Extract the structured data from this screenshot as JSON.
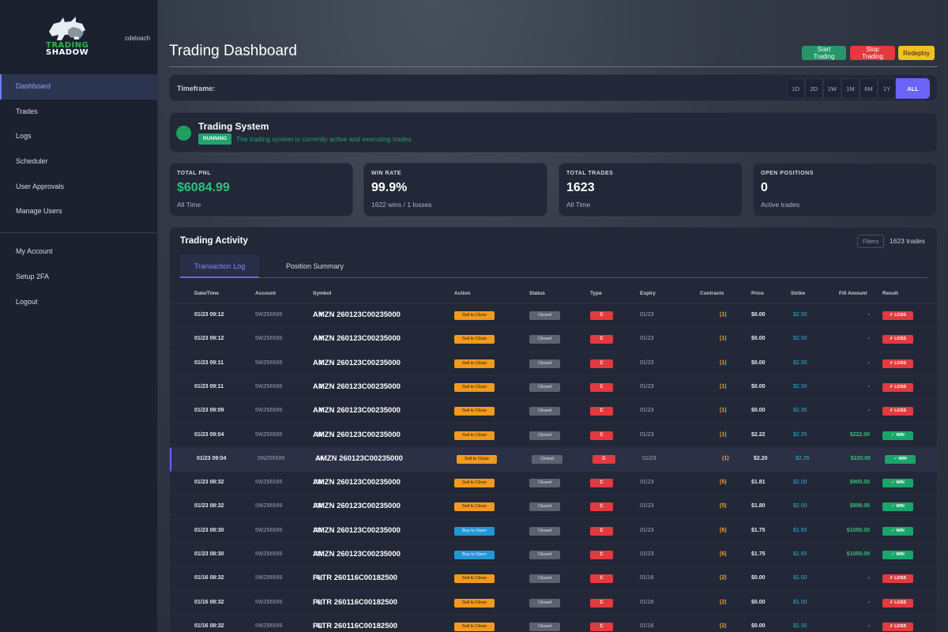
{
  "app": {
    "logo_line1": "TRADING",
    "logo_line2": "SHADOW",
    "username": "cdeloach"
  },
  "sidebar": {
    "items": [
      {
        "label": "Dashboard",
        "active": true
      },
      {
        "label": "Trades"
      },
      {
        "label": "Logs"
      },
      {
        "label": "Scheduler"
      },
      {
        "label": "User Approvals"
      },
      {
        "label": "Manage Users"
      }
    ],
    "account_items": [
      {
        "label": "My Account"
      },
      {
        "label": "Setup 2FA"
      },
      {
        "label": "Logout"
      }
    ]
  },
  "header": {
    "title": "Trading Dashboard",
    "start_label": "Start Trading",
    "stop_label": "Stop Trading",
    "redeploy_label": "Redeploy"
  },
  "timeframe": {
    "label": "Timeframe:",
    "options": [
      "1D",
      "2D",
      "1W",
      "1M",
      "6M",
      "1Y",
      "ALL"
    ],
    "selected": "ALL"
  },
  "system": {
    "title": "Trading System",
    "badge": "RUNNING",
    "description": "The trading system is currently active and executing trades."
  },
  "stats": [
    {
      "label": "TOTAL PNL",
      "value": "$6084.99",
      "sub": "All Time"
    },
    {
      "label": "WIN RATE",
      "value": "99.9%",
      "sub": "1622 wins / 1 losses"
    },
    {
      "label": "TOTAL TRADES",
      "value": "1623",
      "sub": "All Time"
    },
    {
      "label": "OPEN POSITIONS",
      "value": "0",
      "sub": "Active trades"
    }
  ],
  "activity": {
    "title": "Trading Activity",
    "filters_label": "Filters",
    "count_label": "1623 trades",
    "tabs": [
      "Transaction Log",
      "Position Summary"
    ],
    "columns": [
      "Date/Time",
      "Account",
      "Symbol",
      "Action",
      "Status",
      "Type",
      "Expiry",
      "Contracts",
      "Price",
      "Strike",
      "Fill Amount",
      "Result"
    ],
    "rows": [
      {
        "date": "01/23 09:12",
        "account": "5WZ66589",
        "symbol": "AMZN 260123C00235000",
        "action": "Sell to Close",
        "status": "Closed",
        "type": "C",
        "expiry": "01/23",
        "contracts": "4",
        "contracts_sub": "(1)",
        "price": "$0.00",
        "strike": "$2.50",
        "fill": "-",
        "result": "✗ LOSS"
      },
      {
        "date": "01/23 09:12",
        "account": "5WZ66589",
        "symbol": "AMZN 260123C00235000",
        "action": "Sell to Close",
        "status": "Closed",
        "type": "C",
        "expiry": "01/23",
        "contracts": "4",
        "contracts_sub": "(1)",
        "price": "$0.00",
        "strike": "$2.50",
        "fill": "-",
        "result": "✗ LOSS"
      },
      {
        "date": "01/23 09:11",
        "account": "5WZ66589",
        "symbol": "AMZN 260123C00235000",
        "action": "Sell to Close",
        "status": "Closed",
        "type": "C",
        "expiry": "01/23",
        "contracts": "3",
        "contracts_sub": "(1)",
        "price": "$0.00",
        "strike": "$2.50",
        "fill": "-",
        "result": "✗ LOSS"
      },
      {
        "date": "01/23 09:11",
        "account": "5WZ66589",
        "symbol": "AMZN 260123C00235000",
        "action": "Sell to Close",
        "status": "Closed",
        "type": "C",
        "expiry": "01/23",
        "contracts": "3",
        "contracts_sub": "(1)",
        "price": "$0.00",
        "strike": "$2.50",
        "fill": "-",
        "result": "✗ LOSS"
      },
      {
        "date": "01/23 09:09",
        "account": "5WZ66589",
        "symbol": "AMZN 260123C00235000",
        "action": "Sell to Close",
        "status": "Closed",
        "type": "C",
        "expiry": "01/23",
        "contracts": "4",
        "contracts_sub": "(1)",
        "price": "$0.00",
        "strike": "$2.35",
        "fill": "-",
        "result": "✗ LOSS"
      },
      {
        "date": "01/23 09:04",
        "account": "5WZ66589",
        "symbol": "AMZN 260123C00235000",
        "action": "Sell to Close",
        "status": "Closed",
        "type": "C",
        "expiry": "01/23",
        "contracts": "10",
        "contracts_sub": "(1)",
        "price": "$2.22",
        "strike": "$2.25",
        "fill": "$222.00",
        "result": "✓ WIN"
      },
      {
        "date": "01/23 09:04",
        "account": "5WZ66589",
        "symbol": "AMZN 260123C00235000",
        "action": "Sell to Close",
        "status": "Closed",
        "type": "C",
        "expiry": "01/23",
        "contracts": "10",
        "contracts_sub": "(1)",
        "price": "$2.20",
        "strike": "$2.25",
        "fill": "$220.00",
        "result": "✓ WIN",
        "highlight": true
      },
      {
        "date": "01/23 08:32",
        "account": "5WZ66589",
        "symbol": "AMZN 260123C00235000",
        "action": "Sell to Close",
        "status": "Closed",
        "type": "C",
        "expiry": "01/23",
        "contracts": "100",
        "contracts_sub": "(5)",
        "price": "$1.81",
        "strike": "$2.00",
        "fill": "$905.00",
        "result": "✓ WIN"
      },
      {
        "date": "01/23 08:32",
        "account": "5WZ66589",
        "symbol": "AMZN 260123C00235000",
        "action": "Sell to Close",
        "status": "Closed",
        "type": "C",
        "expiry": "01/23",
        "contracts": "100",
        "contracts_sub": "(5)",
        "price": "$1.80",
        "strike": "$2.00",
        "fill": "$898.00",
        "result": "✓ WIN"
      },
      {
        "date": "01/23 08:30",
        "account": "5WZ66589",
        "symbol": "AMZN 260123C00235000",
        "action": "Buy to Open",
        "status": "Closed",
        "type": "C",
        "expiry": "01/23",
        "contracts": "121",
        "contracts_sub": "(6)",
        "price": "$1.75",
        "strike": "$1.65",
        "fill": "$1050.00",
        "result": "✓ WIN"
      },
      {
        "date": "01/23 08:30",
        "account": "5WZ66589",
        "symbol": "AMZN 260123C00235000",
        "action": "Buy to Open",
        "status": "Closed",
        "type": "C",
        "expiry": "01/23",
        "contracts": "121",
        "contracts_sub": "(6)",
        "price": "$1.75",
        "strike": "$1.65",
        "fill": "$1050.00",
        "result": "✓ WIN"
      },
      {
        "date": "01/16 08:32",
        "account": "5WZ66589",
        "symbol": "PLTR 260116C00182500",
        "action": "Sell to Close",
        "status": "Closed",
        "type": "C",
        "expiry": "01/16",
        "contracts": "24",
        "contracts_sub": "(2)",
        "price": "$0.00",
        "strike": "$1.00",
        "fill": "-",
        "result": "✗ LOSS"
      },
      {
        "date": "01/16 08:32",
        "account": "5WZ66589",
        "symbol": "PLTR 260116C00182500",
        "action": "Sell to Close",
        "status": "Closed",
        "type": "C",
        "expiry": "01/16",
        "contracts": "24",
        "contracts_sub": "(2)",
        "price": "$0.00",
        "strike": "$1.00",
        "fill": "-",
        "result": "✗ LOSS"
      },
      {
        "date": "01/16 08:32",
        "account": "5WZ66589",
        "symbol": "PLTR 260116C00182500",
        "action": "Sell to Close",
        "status": "Closed",
        "type": "C",
        "expiry": "01/16",
        "contracts": "23",
        "contracts_sub": "(2)",
        "price": "$0.00",
        "strike": "$1.30",
        "fill": "-",
        "result": "✗ LOSS"
      }
    ]
  },
  "colors": {
    "accent": "#6a63f5",
    "win": "#19a66a",
    "loss": "#e23a3e",
    "sell": "#f29a1e",
    "buy": "#2496d6"
  },
  "icons": {
    "logo": "bull-bear-icon",
    "status": "status-dot-icon"
  }
}
